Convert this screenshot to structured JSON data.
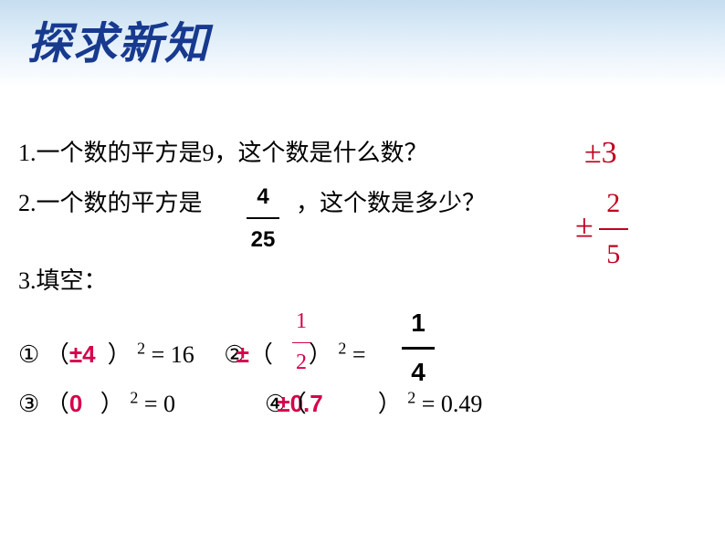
{
  "title": "探求新知",
  "colors": {
    "title": "#173a8f",
    "answer_serif": "#c00020",
    "answer_bold": "#d6004c",
    "text": "#000000",
    "bg": "#ffffff"
  },
  "font": {
    "body_size": 26,
    "title_size": 48
  },
  "q1": {
    "label": "1.",
    "text": "一个数的平方是9，这个数是什么数？",
    "answer": "±3"
  },
  "q2": {
    "label": "2.",
    "text_a": "一个数的平方是",
    "text_b": "，这个数是多少？",
    "frac_num": "4",
    "frac_den": "25",
    "answer_pm": "±",
    "answer_num": "2",
    "answer_den": "5"
  },
  "q3": {
    "label": "3.",
    "text": "填空："
  },
  "blank1": {
    "circ": "①",
    "open": "（",
    "close": "）",
    "exp": "2",
    "eq": " =  16",
    "answer": "±4"
  },
  "blank2": {
    "circ": "②",
    "open": "（",
    "close": "）",
    "exp": "2",
    "eq": " =",
    "answer_pm": "±",
    "answer_num": "1",
    "answer_den": "2",
    "rhs_num": "1",
    "rhs_den": "4"
  },
  "blank3": {
    "circ": "③",
    "open": "（",
    "close": "）",
    "exp": "2",
    "eq": " =  0",
    "answer": "0"
  },
  "blank4": {
    "circ": "④",
    "open": "（",
    "close": "）",
    "exp": "2",
    "eq": "  =  0.49",
    "answer": "±0.7"
  }
}
